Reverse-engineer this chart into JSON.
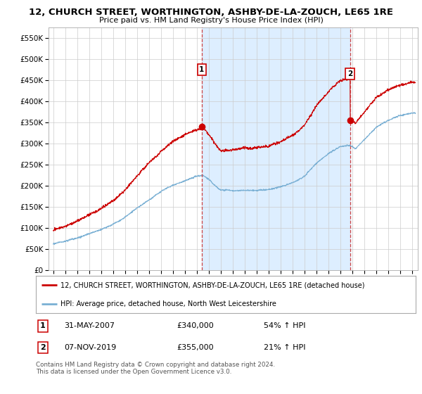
{
  "title_line1": "12, CHURCH STREET, WORTHINGTON, ASHBY-DE-LA-ZOUCH, LE65 1RE",
  "title_line2": "Price paid vs. HM Land Registry's House Price Index (HPI)",
  "ylim": [
    0,
    575000
  ],
  "yticks": [
    0,
    50000,
    100000,
    150000,
    200000,
    250000,
    300000,
    350000,
    400000,
    450000,
    500000,
    550000
  ],
  "ytick_labels": [
    "£0",
    "£50K",
    "£100K",
    "£150K",
    "£200K",
    "£250K",
    "£300K",
    "£350K",
    "£400K",
    "£450K",
    "£500K",
    "£550K"
  ],
  "legend_line1": "12, CHURCH STREET, WORTHINGTON, ASHBY-DE-LA-ZOUCH, LE65 1RE (detached house)",
  "legend_line2": "HPI: Average price, detached house, North West Leicestershire",
  "marker1_date": "31-MAY-2007",
  "marker1_value": 340000,
  "marker1_pct": "54% ↑ HPI",
  "marker2_date": "07-NOV-2019",
  "marker2_value": 355000,
  "marker2_pct": "21% ↑ HPI",
  "footer": "Contains HM Land Registry data © Crown copyright and database right 2024.\nThis data is licensed under the Open Government Licence v3.0.",
  "red_color": "#cc0000",
  "blue_color": "#7ab0d4",
  "dashed_color": "#cc4444",
  "shade_color": "#ddeeff",
  "background_color": "#ffffff",
  "grid_color": "#cccccc",
  "date1_x": 2007.417,
  "date2_x": 2019.833,
  "xlim_left": 1994.6,
  "xlim_right": 2025.5
}
